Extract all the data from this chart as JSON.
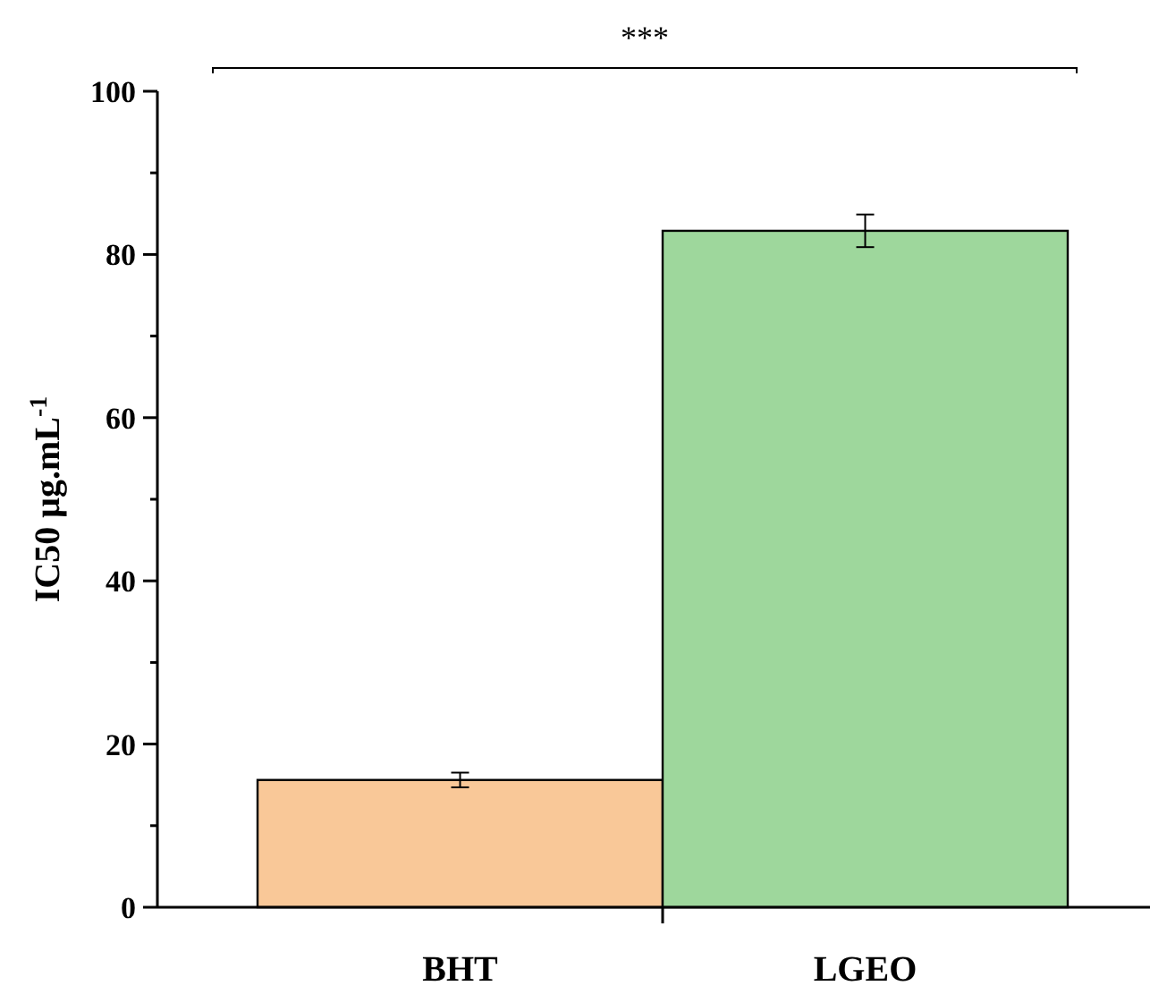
{
  "chart_data": {
    "type": "bar",
    "ylabel": "IC50 μg.mL$^{-1}$",
    "categories": [
      "BHT",
      "LGEO"
    ],
    "values": [
      15.6,
      82.9
    ],
    "errors": [
      0.9,
      2.0
    ],
    "colors": [
      "#f9c898",
      "#9ed79c"
    ],
    "ylim": [
      0,
      100
    ],
    "yticks": [
      0,
      {
        "value": 10,
        "label": null
      },
      20,
      {
        "value": 30,
        "label": null
      },
      40,
      {
        "value": 50,
        "label": null
      },
      60,
      {
        "value": 70,
        "label": null
      },
      80,
      {
        "value": 90,
        "label": null
      },
      100
    ],
    "annotations": [
      "***"
    ]
  }
}
